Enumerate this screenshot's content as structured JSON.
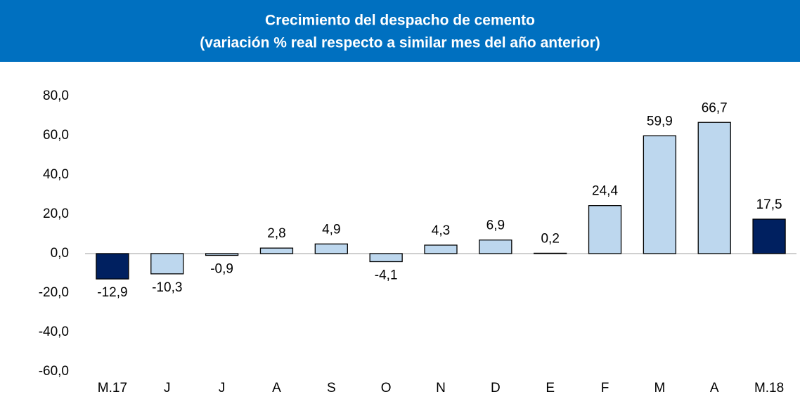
{
  "chart_data": {
    "type": "bar",
    "title": "Crecimiento del despacho de cemento",
    "subtitle": "(variación % real respecto a similar mes del año anterior)",
    "categories": [
      "M.17",
      "J",
      "J",
      "A",
      "S",
      "O",
      "N",
      "D",
      "E",
      "F",
      "M",
      "A",
      "M.18"
    ],
    "values": [
      -12.9,
      -10.3,
      -0.9,
      2.8,
      4.9,
      -4.1,
      4.3,
      6.9,
      0.2,
      24.4,
      59.9,
      66.7,
      17.5
    ],
    "value_labels": [
      "-12,9",
      "-10,3",
      "-0,9",
      "2,8",
      "4,9",
      "-4,1",
      "4,3",
      "6,9",
      "0,2",
      "24,4",
      "59,9",
      "66,7",
      "17,5"
    ],
    "colors": [
      "#002060",
      "#bdd7ee",
      "#bdd7ee",
      "#bdd7ee",
      "#bdd7ee",
      "#bdd7ee",
      "#bdd7ee",
      "#bdd7ee",
      "#bdd7ee",
      "#bdd7ee",
      "#bdd7ee",
      "#bdd7ee",
      "#002060"
    ],
    "ylim": [
      -60,
      80
    ],
    "yticks": [
      {
        "value": -60,
        "label": "-60,0"
      },
      {
        "value": -40,
        "label": "-40,0"
      },
      {
        "value": -20,
        "label": "-20,0"
      },
      {
        "value": 0,
        "label": "0,0"
      },
      {
        "value": 20,
        "label": "20,0"
      },
      {
        "value": 40,
        "label": "40,0"
      },
      {
        "value": 60,
        "label": "60,0"
      },
      {
        "value": 80,
        "label": "80,0"
      }
    ],
    "grid": false
  }
}
